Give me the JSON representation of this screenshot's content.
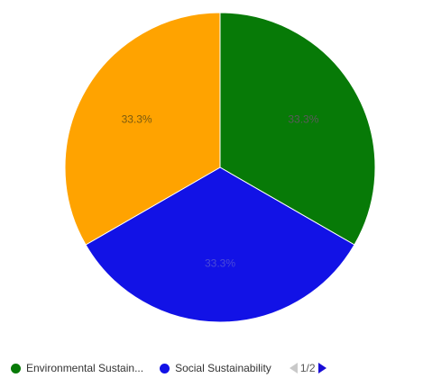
{
  "chart_data": {
    "type": "pie",
    "slices": [
      {
        "label": "Environmental Sustain...",
        "value": 33.3,
        "display": "33.3%",
        "color": "#077a07"
      },
      {
        "label": "Social Sustainability",
        "value": 33.3,
        "display": "33.3%",
        "color": "#1212e6"
      },
      {
        "label": "",
        "value": 33.3,
        "display": "33.3%",
        "color": "#ffa300"
      }
    ],
    "start_angle_deg": 0,
    "direction": "clockwise",
    "label_colors": [
      "#5a5a5a",
      "#4a4ad8",
      "#7a5a10"
    ],
    "legend": {
      "position": "bottom",
      "visible_items": [
        "Environmental Sustain...",
        "Social Sustainability"
      ],
      "page_label": "1/2"
    }
  }
}
